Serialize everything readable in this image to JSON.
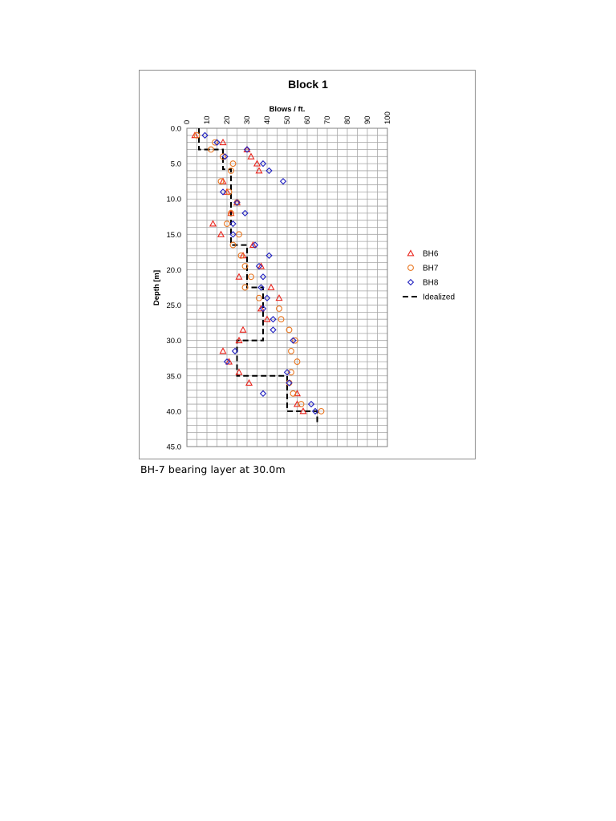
{
  "caption": "BH-7 bearing layer at 30.0m",
  "chart_data": {
    "type": "scatter",
    "title": "Block 1",
    "xlabel": "Blows / ft.",
    "ylabel": "Depth [m]",
    "xlim": [
      0,
      100
    ],
    "ylim": [
      45,
      0
    ],
    "x_axis_position": "top",
    "y_axis_inverted": true,
    "x_ticks": [
      "0",
      "10",
      "20",
      "30",
      "40",
      "50",
      "60",
      "70",
      "80",
      "90",
      "100"
    ],
    "y_ticks": [
      "0.0",
      "5.0",
      "10.0",
      "15.0",
      "20.0",
      "25.0",
      "30.0",
      "35.0",
      "40.0",
      "45.0"
    ],
    "grid": true,
    "legend_position": "right",
    "series": [
      {
        "name": "BH6",
        "marker": "triangle",
        "color": "#e8231b",
        "points": [
          [
            4,
            1
          ],
          [
            18,
            2
          ],
          [
            30,
            3
          ],
          [
            32,
            4
          ],
          [
            35,
            5
          ],
          [
            36,
            6
          ],
          [
            18,
            7.5
          ],
          [
            20,
            9
          ],
          [
            25,
            10.5
          ],
          [
            22,
            12
          ],
          [
            13,
            13.5
          ],
          [
            17,
            15
          ],
          [
            33,
            16.5
          ],
          [
            28,
            18
          ],
          [
            37,
            19.5
          ],
          [
            26,
            21
          ],
          [
            42,
            22.5
          ],
          [
            46,
            24
          ],
          [
            37,
            25.5
          ],
          [
            40,
            27
          ],
          [
            28,
            28.5
          ],
          [
            26,
            30
          ],
          [
            18,
            31.5
          ],
          [
            21,
            33
          ],
          [
            26,
            34.5
          ],
          [
            31,
            36
          ],
          [
            55,
            37.5
          ],
          [
            55,
            39
          ],
          [
            58,
            40
          ]
        ]
      },
      {
        "name": "BH7",
        "marker": "circle",
        "color": "#e87722",
        "points": [
          [
            5,
            1
          ],
          [
            14,
            2
          ],
          [
            12,
            3
          ],
          [
            18,
            4
          ],
          [
            23,
            5
          ],
          [
            22,
            6
          ],
          [
            17,
            7.5
          ],
          [
            21,
            9
          ],
          [
            25,
            10.5
          ],
          [
            22,
            12
          ],
          [
            20,
            13.5
          ],
          [
            26,
            15
          ],
          [
            23,
            16.5
          ],
          [
            27,
            18
          ],
          [
            29,
            19.5
          ],
          [
            32,
            21
          ],
          [
            29,
            22.5
          ],
          [
            36,
            24
          ],
          [
            46,
            25.5
          ],
          [
            47,
            27
          ],
          [
            51,
            28.5
          ],
          [
            54,
            30
          ],
          [
            52,
            31.5
          ],
          [
            55,
            33
          ],
          [
            52,
            34.5
          ],
          [
            51,
            36
          ],
          [
            53,
            37.5
          ],
          [
            57,
            39
          ],
          [
            67,
            40
          ]
        ]
      },
      {
        "name": "BH8",
        "marker": "diamond",
        "color": "#1f1fbf",
        "points": [
          [
            9,
            1
          ],
          [
            15,
            2
          ],
          [
            30,
            3
          ],
          [
            19,
            4
          ],
          [
            38,
            5
          ],
          [
            41,
            6
          ],
          [
            48,
            7.5
          ],
          [
            18,
            9
          ],
          [
            25,
            10.5
          ],
          [
            29,
            12
          ],
          [
            23,
            13.5
          ],
          [
            23,
            15
          ],
          [
            34,
            16.5
          ],
          [
            41,
            18
          ],
          [
            36,
            19.5
          ],
          [
            38,
            21
          ],
          [
            37,
            22.5
          ],
          [
            40,
            24
          ],
          [
            38,
            25.5
          ],
          [
            43,
            27
          ],
          [
            43,
            28.5
          ],
          [
            53,
            30
          ],
          [
            24,
            31.5
          ],
          [
            20,
            33
          ],
          [
            50,
            34.5
          ],
          [
            51,
            36
          ],
          [
            38,
            37.5
          ],
          [
            62,
            39
          ],
          [
            64,
            40
          ]
        ]
      },
      {
        "name": "Idealized",
        "line": "dashed",
        "color": "#000000",
        "points": [
          [
            6,
            0
          ],
          [
            6,
            3
          ],
          [
            18,
            3
          ],
          [
            18,
            5.8
          ],
          [
            22,
            5.8
          ],
          [
            22,
            16.5
          ],
          [
            30,
            16.5
          ],
          [
            30,
            22.5
          ],
          [
            38,
            22.5
          ],
          [
            38,
            30
          ],
          [
            25,
            30
          ],
          [
            25,
            35
          ],
          [
            50,
            35
          ],
          [
            50,
            40
          ],
          [
            65,
            40
          ],
          [
            65,
            42
          ]
        ]
      }
    ]
  }
}
